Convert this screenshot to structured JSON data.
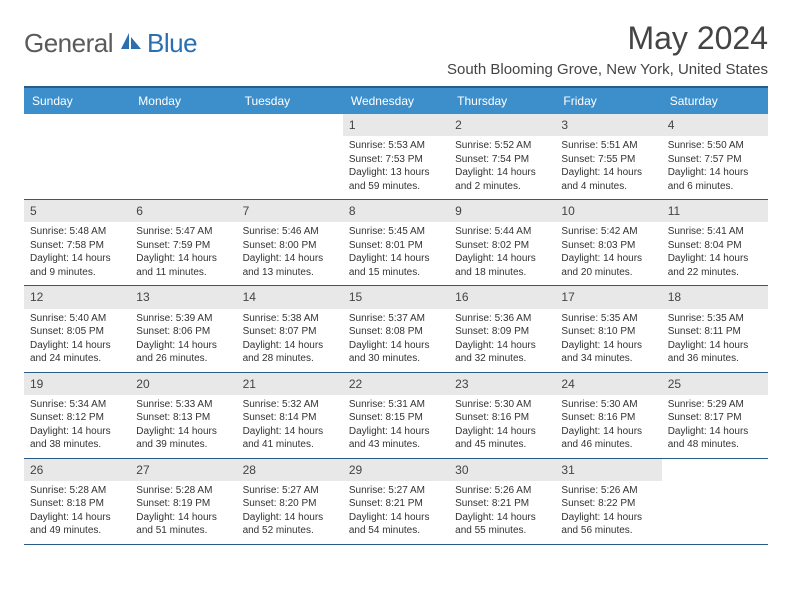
{
  "logo": {
    "word1": "General",
    "word2": "Blue"
  },
  "title": "May 2024",
  "location": "South Blooming Grove, New York, United States",
  "colors": {
    "header_bg": "#3d8fcc",
    "header_text": "#ffffff",
    "border": "#2a5c8a",
    "daynum_bg": "#e8e8e8",
    "logo_gray": "#5a5a5a",
    "logo_blue": "#2a6fb0"
  },
  "day_names": [
    "Sunday",
    "Monday",
    "Tuesday",
    "Wednesday",
    "Thursday",
    "Friday",
    "Saturday"
  ],
  "weeks": [
    [
      null,
      null,
      null,
      {
        "d": "1",
        "sr": "5:53 AM",
        "ss": "7:53 PM",
        "dl": "13 hours and 59 minutes."
      },
      {
        "d": "2",
        "sr": "5:52 AM",
        "ss": "7:54 PM",
        "dl": "14 hours and 2 minutes."
      },
      {
        "d": "3",
        "sr": "5:51 AM",
        "ss": "7:55 PM",
        "dl": "14 hours and 4 minutes."
      },
      {
        "d": "4",
        "sr": "5:50 AM",
        "ss": "7:57 PM",
        "dl": "14 hours and 6 minutes."
      }
    ],
    [
      {
        "d": "5",
        "sr": "5:48 AM",
        "ss": "7:58 PM",
        "dl": "14 hours and 9 minutes."
      },
      {
        "d": "6",
        "sr": "5:47 AM",
        "ss": "7:59 PM",
        "dl": "14 hours and 11 minutes."
      },
      {
        "d": "7",
        "sr": "5:46 AM",
        "ss": "8:00 PM",
        "dl": "14 hours and 13 minutes."
      },
      {
        "d": "8",
        "sr": "5:45 AM",
        "ss": "8:01 PM",
        "dl": "14 hours and 15 minutes."
      },
      {
        "d": "9",
        "sr": "5:44 AM",
        "ss": "8:02 PM",
        "dl": "14 hours and 18 minutes."
      },
      {
        "d": "10",
        "sr": "5:42 AM",
        "ss": "8:03 PM",
        "dl": "14 hours and 20 minutes."
      },
      {
        "d": "11",
        "sr": "5:41 AM",
        "ss": "8:04 PM",
        "dl": "14 hours and 22 minutes."
      }
    ],
    [
      {
        "d": "12",
        "sr": "5:40 AM",
        "ss": "8:05 PM",
        "dl": "14 hours and 24 minutes."
      },
      {
        "d": "13",
        "sr": "5:39 AM",
        "ss": "8:06 PM",
        "dl": "14 hours and 26 minutes."
      },
      {
        "d": "14",
        "sr": "5:38 AM",
        "ss": "8:07 PM",
        "dl": "14 hours and 28 minutes."
      },
      {
        "d": "15",
        "sr": "5:37 AM",
        "ss": "8:08 PM",
        "dl": "14 hours and 30 minutes."
      },
      {
        "d": "16",
        "sr": "5:36 AM",
        "ss": "8:09 PM",
        "dl": "14 hours and 32 minutes."
      },
      {
        "d": "17",
        "sr": "5:35 AM",
        "ss": "8:10 PM",
        "dl": "14 hours and 34 minutes."
      },
      {
        "d": "18",
        "sr": "5:35 AM",
        "ss": "8:11 PM",
        "dl": "14 hours and 36 minutes."
      }
    ],
    [
      {
        "d": "19",
        "sr": "5:34 AM",
        "ss": "8:12 PM",
        "dl": "14 hours and 38 minutes."
      },
      {
        "d": "20",
        "sr": "5:33 AM",
        "ss": "8:13 PM",
        "dl": "14 hours and 39 minutes."
      },
      {
        "d": "21",
        "sr": "5:32 AM",
        "ss": "8:14 PM",
        "dl": "14 hours and 41 minutes."
      },
      {
        "d": "22",
        "sr": "5:31 AM",
        "ss": "8:15 PM",
        "dl": "14 hours and 43 minutes."
      },
      {
        "d": "23",
        "sr": "5:30 AM",
        "ss": "8:16 PM",
        "dl": "14 hours and 45 minutes."
      },
      {
        "d": "24",
        "sr": "5:30 AM",
        "ss": "8:16 PM",
        "dl": "14 hours and 46 minutes."
      },
      {
        "d": "25",
        "sr": "5:29 AM",
        "ss": "8:17 PM",
        "dl": "14 hours and 48 minutes."
      }
    ],
    [
      {
        "d": "26",
        "sr": "5:28 AM",
        "ss": "8:18 PM",
        "dl": "14 hours and 49 minutes."
      },
      {
        "d": "27",
        "sr": "5:28 AM",
        "ss": "8:19 PM",
        "dl": "14 hours and 51 minutes."
      },
      {
        "d": "28",
        "sr": "5:27 AM",
        "ss": "8:20 PM",
        "dl": "14 hours and 52 minutes."
      },
      {
        "d": "29",
        "sr": "5:27 AM",
        "ss": "8:21 PM",
        "dl": "14 hours and 54 minutes."
      },
      {
        "d": "30",
        "sr": "5:26 AM",
        "ss": "8:21 PM",
        "dl": "14 hours and 55 minutes."
      },
      {
        "d": "31",
        "sr": "5:26 AM",
        "ss": "8:22 PM",
        "dl": "14 hours and 56 minutes."
      },
      null
    ]
  ],
  "labels": {
    "sunrise": "Sunrise:",
    "sunset": "Sunset:",
    "daylight": "Daylight:"
  }
}
